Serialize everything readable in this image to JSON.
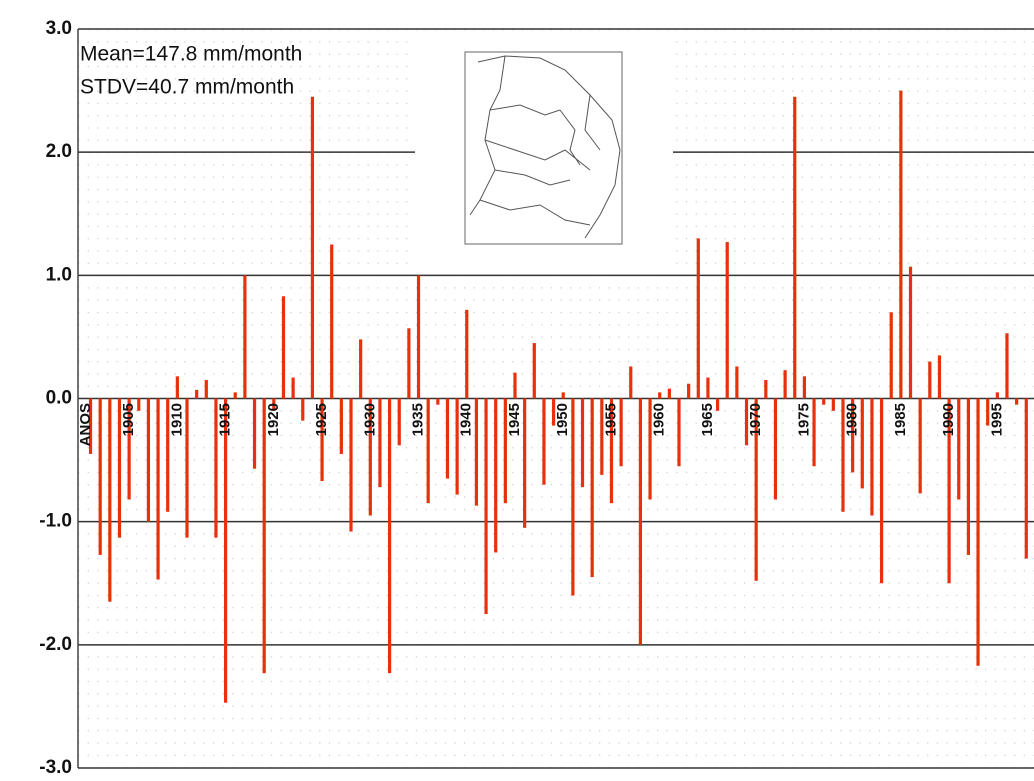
{
  "chart_data": {
    "type": "bar",
    "annotations": [
      "Mean=147.8 mm/month",
      "STDV=40.7 mm/month"
    ],
    "x_label": "ANOS",
    "x": [
      1901,
      1902,
      1903,
      1904,
      1905,
      1906,
      1907,
      1908,
      1909,
      1910,
      1911,
      1912,
      1913,
      1914,
      1915,
      1916,
      1917,
      1918,
      1919,
      1920,
      1921,
      1922,
      1923,
      1924,
      1925,
      1926,
      1927,
      1928,
      1929,
      1930,
      1931,
      1932,
      1933,
      1934,
      1935,
      1936,
      1937,
      1938,
      1939,
      1940,
      1941,
      1942,
      1943,
      1944,
      1945,
      1946,
      1947,
      1948,
      1949,
      1950,
      1951,
      1952,
      1953,
      1954,
      1955,
      1956,
      1957,
      1958,
      1959,
      1960,
      1961,
      1962,
      1963,
      1964,
      1965,
      1966,
      1967,
      1968,
      1969,
      1970,
      1971,
      1972,
      1973,
      1974,
      1975,
      1976,
      1977,
      1978,
      1979,
      1980,
      1981,
      1982,
      1983,
      1984,
      1985,
      1986,
      1987,
      1988,
      1989,
      1990,
      1991,
      1992,
      1993,
      1994,
      1995,
      1996,
      1997,
      1998
    ],
    "values": [
      -0.45,
      -1.27,
      -1.65,
      -1.13,
      -0.82,
      -0.1,
      -1.0,
      -1.47,
      -0.92,
      0.18,
      -1.13,
      0.07,
      0.15,
      -1.13,
      -2.47,
      0.05,
      1.0,
      -0.57,
      -2.23,
      -0.1,
      0.83,
      0.17,
      -0.18,
      2.45,
      -0.67,
      1.25,
      -0.45,
      -1.08,
      0.48,
      -0.95,
      -0.72,
      -2.23,
      -0.38,
      0.57,
      1.0,
      -0.85,
      -0.05,
      -0.65,
      -0.78,
      0.72,
      -0.87,
      -1.75,
      -1.25,
      -0.85,
      0.21,
      -1.05,
      0.45,
      -0.7,
      -0.22,
      0.05,
      -1.6,
      -0.72,
      -1.45,
      -0.62,
      -0.85,
      -0.55,
      0.26,
      -2.0,
      -0.82,
      0.05,
      0.08,
      -0.55,
      0.12,
      1.3,
      0.17,
      -0.1,
      1.27,
      0.26,
      -0.38,
      -1.48,
      0.15,
      -0.82,
      0.23,
      2.45,
      0.18,
      -0.55,
      -0.05,
      -0.1,
      -0.92,
      -0.6,
      -0.73,
      -0.95,
      -1.5,
      0.7,
      2.5,
      1.07,
      -0.77,
      0.3,
      0.35,
      -1.5,
      -0.82,
      -1.27,
      -2.17,
      -0.22,
      0.05,
      0.53,
      -0.05,
      -1.3
    ],
    "color": "#e8300c",
    "xlim": [
      1899.7,
      1998.8
    ],
    "xticks": [
      1905,
      1910,
      1915,
      1920,
      1925,
      1930,
      1935,
      1940,
      1945,
      1950,
      1955,
      1960,
      1965,
      1970,
      1975,
      1980,
      1985,
      1990,
      1995
    ],
    "ylim": [
      -3,
      3
    ],
    "yticks": [
      {
        "value": 3,
        "label": "3.0"
      },
      {
        "value": 2,
        "label": "2.0"
      },
      {
        "value": 1,
        "label": "1.0"
      },
      {
        "value": 0,
        "label": "0.0"
      },
      {
        "value": -1,
        "label": "-1.0"
      },
      {
        "value": -2,
        "label": "-2.0"
      },
      {
        "value": -3,
        "label": "-3.0"
      }
    ],
    "grid": true
  }
}
